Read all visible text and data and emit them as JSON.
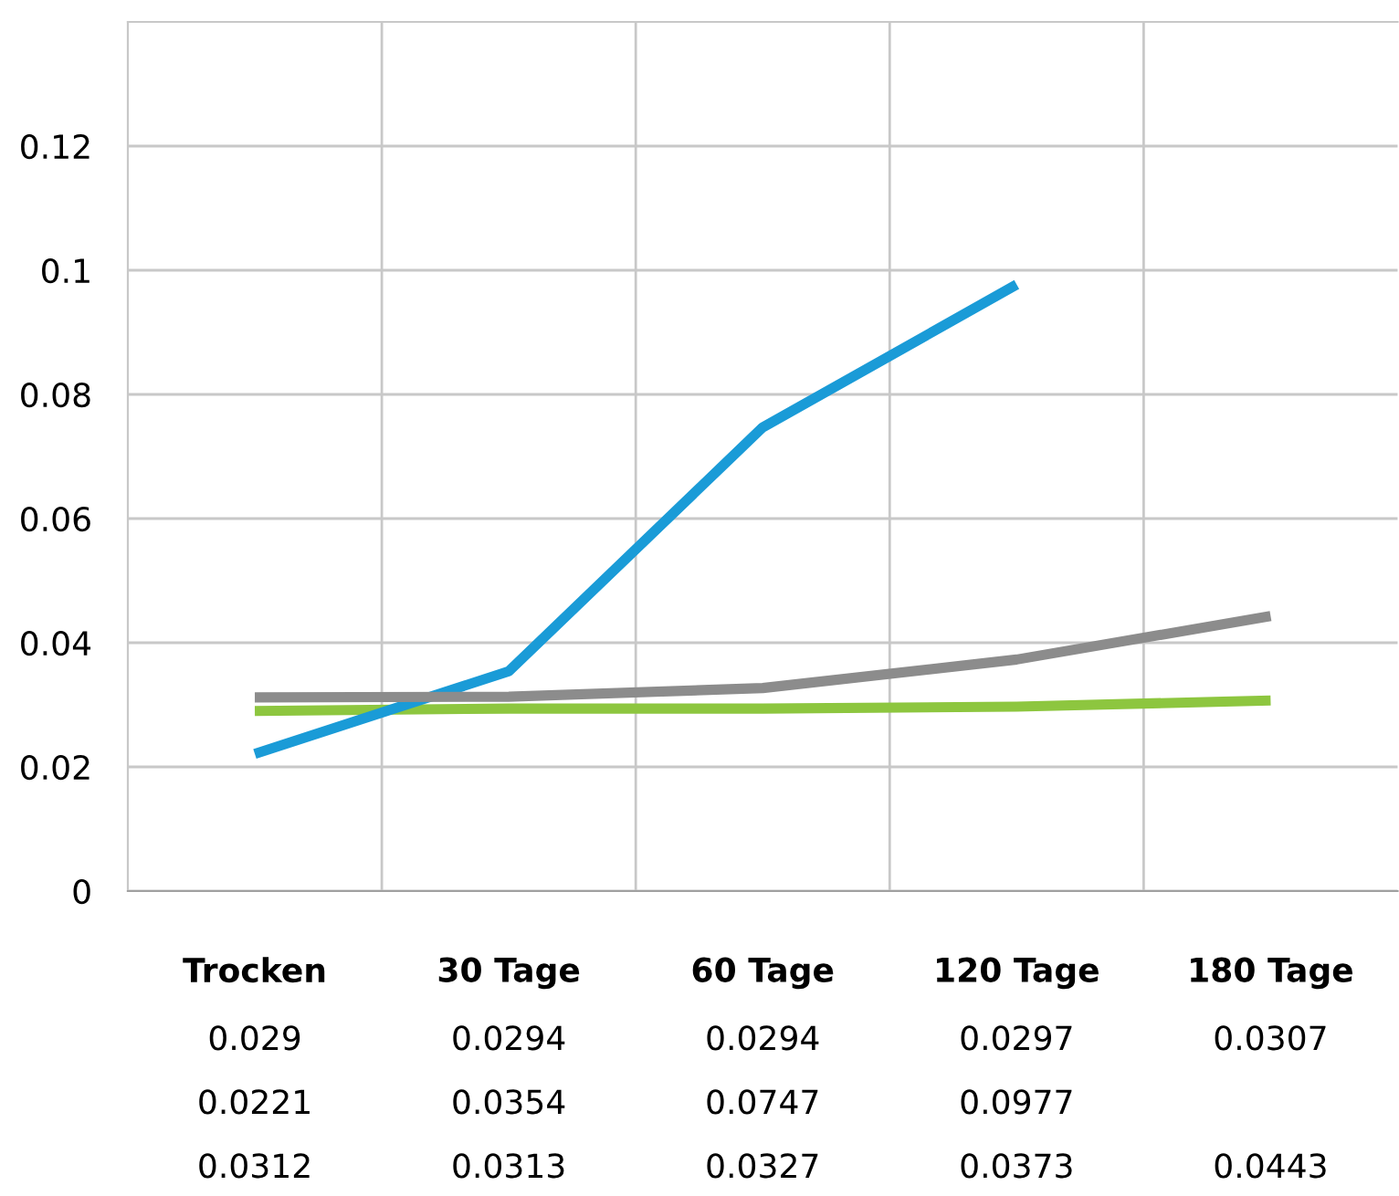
{
  "chart_data": {
    "type": "line",
    "categories": [
      "Trocken",
      "30 Tage",
      "60 Tage",
      "120 Tage",
      "180 Tage"
    ],
    "series": [
      {
        "color": "#8dc63f",
        "values": [
          0.029,
          0.0294,
          0.0294,
          0.0297,
          0.0307
        ]
      },
      {
        "color": "#1a9bd7",
        "values": [
          0.0221,
          0.0354,
          0.0747,
          0.0977,
          null
        ]
      },
      {
        "color": "#8c8c8c",
        "values": [
          0.0312,
          0.0313,
          0.0327,
          0.0373,
          0.0443
        ]
      }
    ],
    "ylim": [
      0,
      0.14
    ],
    "yticks": [
      0,
      0.02,
      0.04,
      0.06,
      0.08,
      0.1,
      0.12
    ],
    "grid": true,
    "data_labels": true,
    "marker": "none",
    "line_style": "solid",
    "legend": false
  }
}
